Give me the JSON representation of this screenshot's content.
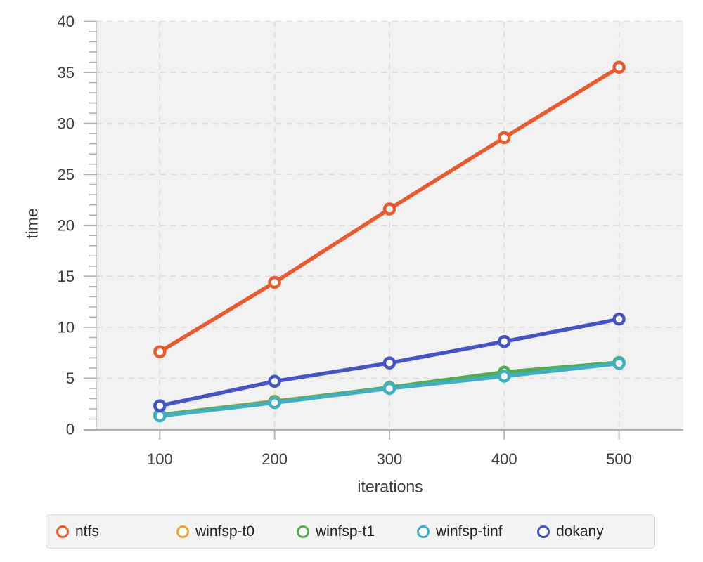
{
  "chart_data": {
    "type": "line",
    "title": "",
    "xlabel": "iterations",
    "ylabel": "time",
    "x": [
      100,
      200,
      300,
      400,
      500
    ],
    "series": [
      {
        "name": "ntfs",
        "color": "#eb5a2d",
        "values": [
          7.6,
          14.4,
          21.6,
          28.6,
          35.5
        ]
      },
      {
        "name": "winfsp-t0",
        "color": "#f2a232",
        "values": [
          1.4,
          2.75,
          4.05,
          5.35,
          6.5
        ]
      },
      {
        "name": "winfsp-t1",
        "color": "#4fae50",
        "values": [
          1.4,
          2.7,
          4.1,
          5.6,
          6.55
        ]
      },
      {
        "name": "winfsp-tinf",
        "color": "#3fb0c4",
        "values": [
          1.3,
          2.6,
          4.0,
          5.2,
          6.45
        ]
      },
      {
        "name": "dokany",
        "color": "#4353c8",
        "values": [
          2.3,
          4.7,
          6.5,
          8.6,
          10.8
        ]
      }
    ],
    "xlim": [
      45,
      556
    ],
    "ylim": [
      0,
      40
    ],
    "x_ticks": [
      100,
      200,
      300,
      400,
      500
    ],
    "y_major_step": 5,
    "y_minor_step": 1,
    "grid": "dashed",
    "legend_position": "bottom",
    "colors": {
      "panel_background": "#f2f2f2",
      "gridline": "#dbdbdb",
      "axis_line": "#b0b0b0",
      "tick_mark": "#b0b0b0",
      "tick_label_text": "#3d3d3d",
      "marker_fill": "#ffffff"
    }
  }
}
